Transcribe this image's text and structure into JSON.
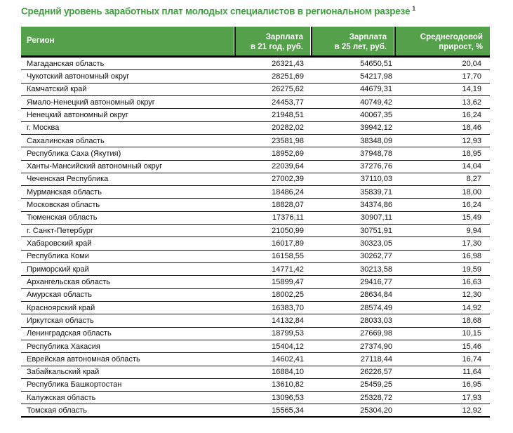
{
  "page": {
    "title": "Средний уровень заработных плат молодых специалистов в региональном разрезе",
    "footnote_marker": "1"
  },
  "colors": {
    "title_green": "#3fa13f",
    "header_green": "#55a04a",
    "header_text": "#ffffff",
    "body_text": "#111111",
    "border_black": "#000000"
  },
  "table": {
    "columns": [
      {
        "key": "region",
        "line1": "Регион",
        "line2": ""
      },
      {
        "key": "salary_21",
        "line1": "Зарплата",
        "line2": "в 21 год, руб."
      },
      {
        "key": "salary_25",
        "line1": "Зарплата",
        "line2": "в 25 лет, руб."
      },
      {
        "key": "growth",
        "line1": "Среднегодовой",
        "line2": "прирост, %"
      }
    ],
    "rows": [
      {
        "region": "Магаданская область",
        "salary_21": "26321,43",
        "salary_25": "54650,51",
        "growth": "20,04"
      },
      {
        "region": "Чукотский автономный округ",
        "salary_21": "28251,69",
        "salary_25": "54217,98",
        "growth": "17,70"
      },
      {
        "region": "Камчатский край",
        "salary_21": "26275,62",
        "salary_25": "44679,31",
        "growth": "14,19"
      },
      {
        "region": "Ямало-Ненецкий автономный округ",
        "salary_21": "24453,77",
        "salary_25": "40749,42",
        "growth": "13,62"
      },
      {
        "region": "Ненецкий автономный округ",
        "salary_21": "21948,51",
        "salary_25": "40067,35",
        "growth": "16,24"
      },
      {
        "region": "г. Москва",
        "salary_21": "20282,02",
        "salary_25": "39942,12",
        "growth": "18,46"
      },
      {
        "region": "Сахалинская область",
        "salary_21": "23581,98",
        "salary_25": "38348,09",
        "growth": "12,93"
      },
      {
        "region": "Республика Саха (Якутия)",
        "salary_21": "18952,69",
        "salary_25": "37948,78",
        "growth": "18,95"
      },
      {
        "region": "Ханты-Мансийский автономный округ",
        "salary_21": "22039,64",
        "salary_25": "37276,76",
        "growth": "14,04"
      },
      {
        "region": "Чеченская Республика",
        "salary_21": "27002,39",
        "salary_25": "37110,03",
        "growth": "8,27"
      },
      {
        "region": "Мурманская область",
        "salary_21": "18486,24",
        "salary_25": "35839,71",
        "growth": "18,00"
      },
      {
        "region": "Московская область",
        "salary_21": "18828,07",
        "salary_25": "34374,86",
        "growth": "16,24"
      },
      {
        "region": "Тюменская область",
        "salary_21": "17376,11",
        "salary_25": "30907,11",
        "growth": "15,49"
      },
      {
        "region": "г. Санкт-Петербург",
        "salary_21": "21050,99",
        "salary_25": "30751,91",
        "growth": "9,94"
      },
      {
        "region": "Хабаровский край",
        "salary_21": "16017,89",
        "salary_25": "30323,05",
        "growth": "17,30"
      },
      {
        "region": "Республика Коми",
        "salary_21": "16158,55",
        "salary_25": "30262,77",
        "growth": "16,98"
      },
      {
        "region": "Приморский край",
        "salary_21": "14771,42",
        "salary_25": "30213,58",
        "growth": "19,59"
      },
      {
        "region": "Архангельская область",
        "salary_21": "15899,47",
        "salary_25": "29416,77",
        "growth": "16,63"
      },
      {
        "region": "Амурская область",
        "salary_21": "18002,25",
        "salary_25": "28634,84",
        "growth": "12,30"
      },
      {
        "region": "Красноярский край",
        "salary_21": "16383,70",
        "salary_25": "28574,49",
        "growth": "14,92"
      },
      {
        "region": "Иркутская область",
        "salary_21": "14132,84",
        "salary_25": "28033,03",
        "growth": "18,68"
      },
      {
        "region": "Ленинградская область",
        "salary_21": "18799,53",
        "salary_25": "27669,98",
        "growth": "10,15"
      },
      {
        "region": "Республика Хакасия",
        "salary_21": "15404,12",
        "salary_25": "27374,90",
        "growth": "15,46"
      },
      {
        "region": "Еврейская автономная область",
        "salary_21": "14602,41",
        "salary_25": "27118,44",
        "growth": "16,74"
      },
      {
        "region": "Забайкальский край",
        "salary_21": "16884,10",
        "salary_25": "26226,57",
        "growth": "11,64"
      },
      {
        "region": "Республика Башкортостан",
        "salary_21": "13610,82",
        "salary_25": "25459,25",
        "growth": "16,95"
      },
      {
        "region": "Калужская область",
        "salary_21": "13096,53",
        "salary_25": "25328,72",
        "growth": "17,93"
      },
      {
        "region": "Томская область",
        "salary_21": "15565,34",
        "salary_25": "25304,20",
        "growth": "12,92"
      }
    ]
  }
}
